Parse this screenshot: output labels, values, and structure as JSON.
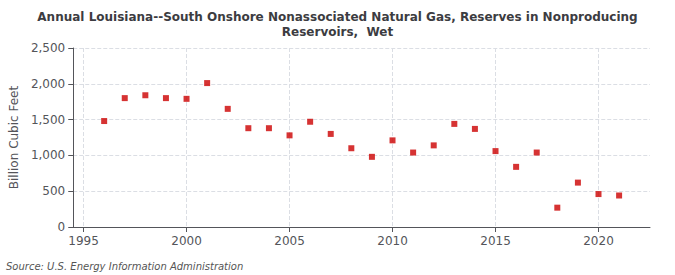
{
  "chart_data": {
    "type": "scatter",
    "title": "Annual Louisiana--South Onshore Nonassociated Natural Gas, Reserves in Nonproducing\nReservoirs,  Wet",
    "ylabel": "Billion Cubic Feet",
    "source": "Source: U.S. Energy Information Administration",
    "x": [
      1996,
      1997,
      1998,
      1999,
      2000,
      2001,
      2002,
      2003,
      2004,
      2005,
      2006,
      2007,
      2008,
      2009,
      2010,
      2011,
      2012,
      2013,
      2014,
      2015,
      2016,
      2017,
      2018,
      2019,
      2020,
      2021
    ],
    "values": [
      1480,
      1800,
      1840,
      1800,
      1790,
      2010,
      1650,
      1380,
      1380,
      1280,
      1470,
      1300,
      1100,
      980,
      1210,
      1040,
      1140,
      1440,
      1370,
      1060,
      840,
      1040,
      270,
      620,
      460,
      440
    ],
    "color": "#cc0000",
    "marker": "square",
    "xlim": [
      1994.5,
      2022.5
    ],
    "xticks": [
      1995,
      2000,
      2005,
      2010,
      2015,
      2020
    ],
    "ylim": [
      0,
      2500
    ],
    "yticks": [
      0,
      500,
      {
        "value": 1000,
        "label": "1,000"
      },
      {
        "value": 1500,
        "label": "1,500"
      },
      {
        "value": 2000,
        "label": "2,000"
      },
      {
        "value": 2500,
        "label": "2,500"
      }
    ],
    "grid": true
  }
}
